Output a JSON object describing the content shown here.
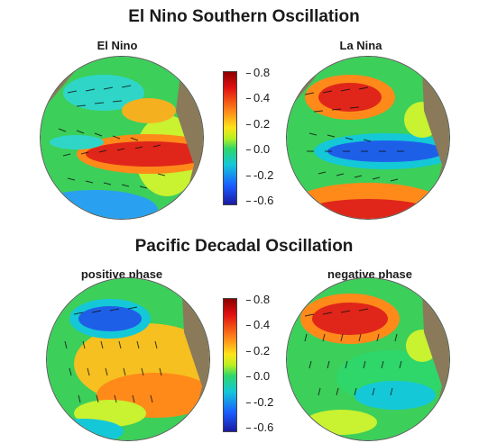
{
  "titles": {
    "enso": "El Nino Southern Oscillation",
    "pdo": "Pacific Decadal Oscillation"
  },
  "panels": {
    "el_nino": "El Nino",
    "la_nina": "La Nina",
    "positive": "positive phase",
    "negative": "negative phase"
  },
  "colorbar_ticks": [
    "0.8",
    "0.4",
    "0.2",
    "0.0",
    "-0.2",
    "-0.6"
  ],
  "colors": {
    "land": "#8a7a5a",
    "ocean_base": "#3ccf5a",
    "warm": "#e0261a",
    "cool": "#1e5fe8",
    "arrows": "#111111"
  }
}
